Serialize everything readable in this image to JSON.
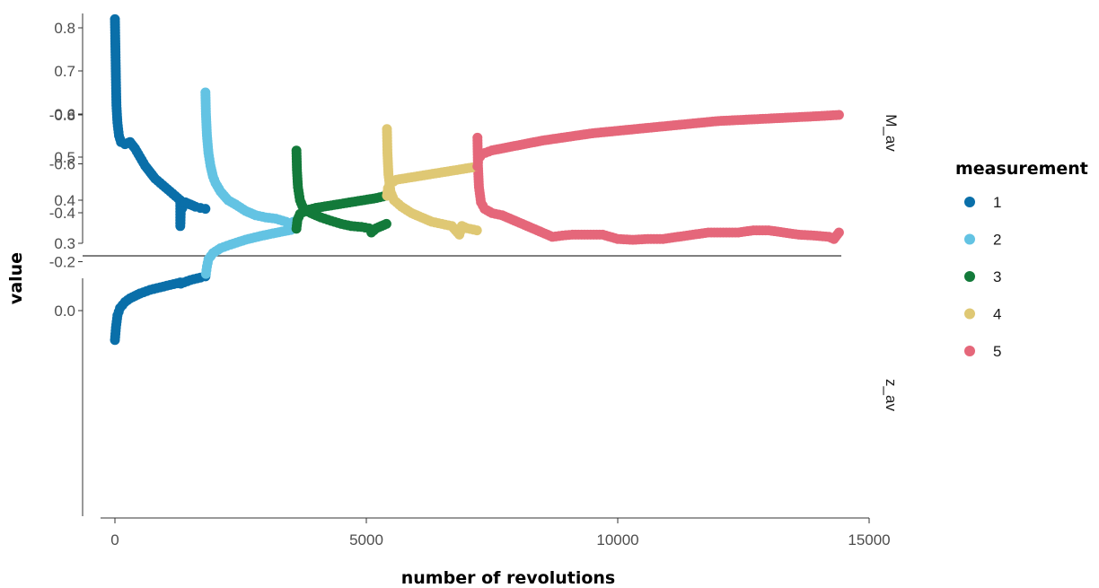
{
  "chart_data": {
    "type": "scatter",
    "xlabel": "number of revolutions",
    "ylabel": "value",
    "xlim": [
      -300,
      15000
    ],
    "x_ticks": [
      "0",
      "5000",
      "10000",
      "15000"
    ],
    "grid": false,
    "legend": {
      "title": "measurement",
      "placement": "right"
    },
    "series": [
      {
        "name": "1",
        "color": "#0a6fa9"
      },
      {
        "name": "2",
        "color": "#63c3e3"
      },
      {
        "name": "3",
        "color": "#137a3a"
      },
      {
        "name": "4",
        "color": "#dfc874"
      },
      {
        "name": "5",
        "color": "#e5677a"
      }
    ],
    "panels": [
      {
        "facet": "M_av",
        "ylim": [
          0.27,
          0.825
        ],
        "y_ticks": [
          "0.3",
          "0.4",
          "0.5",
          "0.6",
          "0.7",
          "0.8"
        ],
        "series_points": [
          [
            [
              0,
              0.82
            ],
            [
              10,
              0.75
            ],
            [
              20,
              0.68
            ],
            [
              30,
              0.62
            ],
            [
              50,
              0.58
            ],
            [
              80,
              0.55
            ],
            [
              120,
              0.535
            ],
            [
              200,
              0.53
            ],
            [
              300,
              0.535
            ],
            [
              400,
              0.52
            ],
            [
              500,
              0.5
            ],
            [
              600,
              0.48
            ],
            [
              700,
              0.465
            ],
            [
              800,
              0.45
            ],
            [
              900,
              0.44
            ],
            [
              1000,
              0.43
            ],
            [
              1100,
              0.42
            ],
            [
              1200,
              0.41
            ],
            [
              1300,
              0.4
            ],
            [
              1300,
              0.34
            ],
            [
              1310,
              0.375
            ],
            [
              1400,
              0.395
            ],
            [
              1500,
              0.39
            ],
            [
              1600,
              0.385
            ],
            [
              1700,
              0.382
            ],
            [
              1800,
              0.38
            ]
          ],
          [
            [
              1800,
              0.65
            ],
            [
              1810,
              0.6
            ],
            [
              1830,
              0.55
            ],
            [
              1860,
              0.51
            ],
            [
              1900,
              0.48
            ],
            [
              1950,
              0.455
            ],
            [
              2000,
              0.44
            ],
            [
              2100,
              0.42
            ],
            [
              2250,
              0.4
            ],
            [
              2400,
              0.39
            ],
            [
              2600,
              0.375
            ],
            [
              2800,
              0.365
            ],
            [
              3000,
              0.36
            ],
            [
              3200,
              0.357
            ],
            [
              3400,
              0.35
            ],
            [
              3450,
              0.345
            ],
            [
              3600,
              0.352
            ]
          ],
          [
            [
              3610,
              0.515
            ],
            [
              3620,
              0.47
            ],
            [
              3640,
              0.43
            ],
            [
              3680,
              0.4
            ],
            [
              3750,
              0.38
            ],
            [
              3900,
              0.37
            ],
            [
              4100,
              0.36
            ],
            [
              4300,
              0.352
            ],
            [
              4500,
              0.345
            ],
            [
              4700,
              0.34
            ],
            [
              4900,
              0.338
            ],
            [
              5050,
              0.335
            ],
            [
              5100,
              0.325
            ],
            [
              5200,
              0.335
            ],
            [
              5300,
              0.34
            ],
            [
              5400,
              0.345
            ]
          ],
          [
            [
              5410,
              0.565
            ],
            [
              5420,
              0.51
            ],
            [
              5440,
              0.46
            ],
            [
              5480,
              0.42
            ],
            [
              5550,
              0.4
            ],
            [
              5700,
              0.385
            ],
            [
              5900,
              0.37
            ],
            [
              6100,
              0.36
            ],
            [
              6300,
              0.35
            ],
            [
              6500,
              0.345
            ],
            [
              6700,
              0.34
            ],
            [
              6850,
              0.32
            ],
            [
              6900,
              0.34
            ],
            [
              7000,
              0.335
            ],
            [
              7200,
              0.33
            ]
          ],
          [
            [
              7210,
              0.545
            ],
            [
              7220,
              0.48
            ],
            [
              7240,
              0.43
            ],
            [
              7280,
              0.395
            ],
            [
              7350,
              0.38
            ],
            [
              7500,
              0.37
            ],
            [
              7700,
              0.365
            ],
            [
              7900,
              0.355
            ],
            [
              8100,
              0.345
            ],
            [
              8300,
              0.335
            ],
            [
              8500,
              0.325
            ],
            [
              8700,
              0.315
            ],
            [
              8900,
              0.318
            ],
            [
              9100,
              0.32
            ],
            [
              9400,
              0.32
            ],
            [
              9700,
              0.32
            ],
            [
              10000,
              0.31
            ],
            [
              10300,
              0.308
            ],
            [
              10600,
              0.31
            ],
            [
              10900,
              0.31
            ],
            [
              11200,
              0.315
            ],
            [
              11500,
              0.32
            ],
            [
              11800,
              0.325
            ],
            [
              12100,
              0.325
            ],
            [
              12400,
              0.325
            ],
            [
              12700,
              0.33
            ],
            [
              13000,
              0.33
            ],
            [
              13300,
              0.325
            ],
            [
              13600,
              0.32
            ],
            [
              13900,
              0.318
            ],
            [
              14200,
              0.315
            ],
            [
              14300,
              0.31
            ],
            [
              14400,
              0.325
            ]
          ]
        ]
      },
      {
        "facet": "z_av",
        "ylim": [
          -0.815,
          0.135
        ],
        "y_ticks": [
          "0.0",
          "-0.2",
          "-0.4",
          "-0.6",
          "-0.8"
        ],
        "series_points": [
          [
            [
              0,
              0.12
            ],
            [
              20,
              0.07
            ],
            [
              50,
              0.02
            ],
            [
              100,
              -0.01
            ],
            [
              200,
              -0.035
            ],
            [
              300,
              -0.05
            ],
            [
              500,
              -0.07
            ],
            [
              700,
              -0.085
            ],
            [
              900,
              -0.095
            ],
            [
              1100,
              -0.105
            ],
            [
              1300,
              -0.115
            ],
            [
              1310,
              -0.11
            ],
            [
              1500,
              -0.125
            ],
            [
              1700,
              -0.135
            ],
            [
              1800,
              -0.14
            ]
          ],
          [
            [
              1810,
              -0.15
            ],
            [
              1830,
              -0.18
            ],
            [
              1860,
              -0.21
            ],
            [
              1950,
              -0.235
            ],
            [
              2100,
              -0.255
            ],
            [
              2300,
              -0.27
            ],
            [
              2600,
              -0.29
            ],
            [
              2900,
              -0.305
            ],
            [
              3200,
              -0.318
            ],
            [
              3500,
              -0.33
            ],
            [
              3600,
              -0.335
            ]
          ],
          [
            [
              3610,
              -0.335
            ],
            [
              3630,
              -0.37
            ],
            [
              3680,
              -0.395
            ],
            [
              3800,
              -0.41
            ],
            [
              4000,
              -0.42
            ],
            [
              4300,
              -0.43
            ],
            [
              4600,
              -0.44
            ],
            [
              4900,
              -0.45
            ],
            [
              5200,
              -0.46
            ],
            [
              5400,
              -0.47
            ]
          ],
          [
            [
              5410,
              -0.47
            ],
            [
              5430,
              -0.5
            ],
            [
              5480,
              -0.52
            ],
            [
              5600,
              -0.535
            ],
            [
              5900,
              -0.545
            ],
            [
              6200,
              -0.555
            ],
            [
              6500,
              -0.565
            ],
            [
              6800,
              -0.575
            ],
            [
              7100,
              -0.585
            ],
            [
              7200,
              -0.59
            ]
          ],
          [
            [
              7210,
              -0.59
            ],
            [
              7230,
              -0.62
            ],
            [
              7300,
              -0.64
            ],
            [
              7500,
              -0.655
            ],
            [
              8000,
              -0.675
            ],
            [
              8500,
              -0.695
            ],
            [
              9000,
              -0.71
            ],
            [
              9500,
              -0.725
            ],
            [
              10000,
              -0.735
            ],
            [
              10500,
              -0.745
            ],
            [
              11000,
              -0.755
            ],
            [
              11500,
              -0.765
            ],
            [
              12000,
              -0.775
            ],
            [
              12500,
              -0.78
            ],
            [
              13000,
              -0.785
            ],
            [
              13500,
              -0.79
            ],
            [
              14000,
              -0.795
            ],
            [
              14400,
              -0.8
            ]
          ]
        ]
      }
    ]
  }
}
